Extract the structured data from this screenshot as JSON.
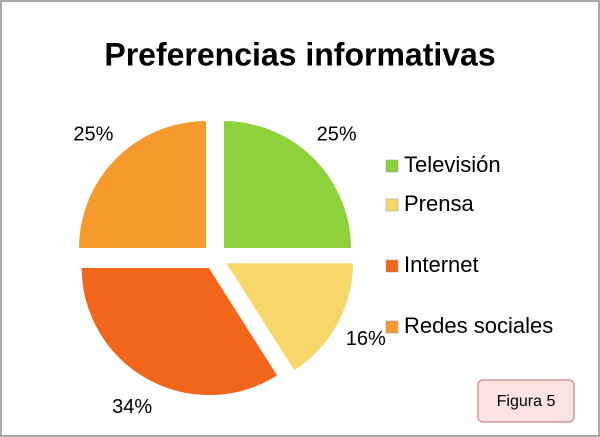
{
  "chart_data": {
    "type": "pie",
    "title": "Preferencias informativas",
    "categories": [
      "Televisión",
      "Prensa",
      "Internet",
      "Redes sociales"
    ],
    "values": [
      25,
      16,
      34,
      25
    ],
    "value_labels": [
      "25%",
      "16%",
      "34%",
      "25%"
    ],
    "colors": [
      "#8fd13a",
      "#f7d76a",
      "#f2661c",
      "#f59a2c"
    ],
    "legend": "right",
    "annotation": "Figura 5"
  }
}
